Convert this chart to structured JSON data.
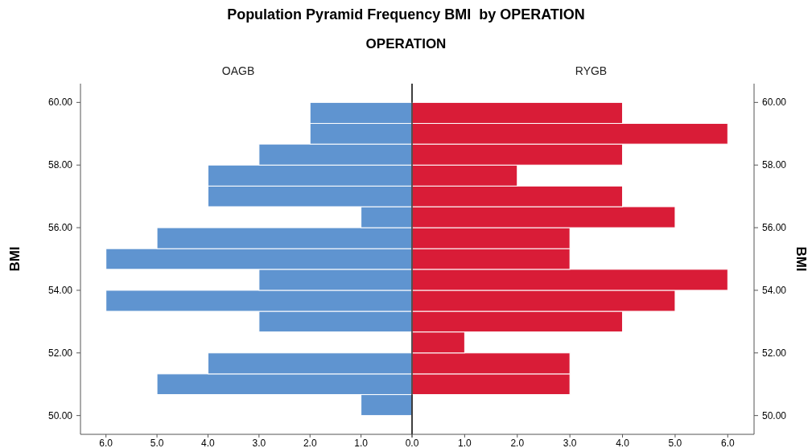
{
  "chart_data": [
    {
      "type": "histogram",
      "orientation": "horizontal",
      "title": "Population Pyramid Frequency BMI  by OPERATION",
      "subtitle": "OPERATION",
      "ylabel": "BMI",
      "bins": [
        50,
        50.67,
        51.33,
        52,
        52.67,
        53.33,
        54,
        54.67,
        55.33,
        56,
        56.67,
        57.33,
        58,
        58.67,
        59.33,
        60
      ],
      "series": [
        {
          "name": "OAGB",
          "color": "#5f94d0",
          "values": [
            1,
            5,
            4,
            0,
            3,
            6,
            3,
            6,
            5,
            1,
            4,
            4,
            3,
            2,
            2
          ]
        }
      ],
      "xlim": [
        6.5,
        0
      ],
      "xticks": [
        {
          "value": 6,
          "label": "6.0"
        },
        {
          "value": 5,
          "label": "5.0"
        },
        {
          "value": 4,
          "label": "4.0"
        },
        {
          "value": 3,
          "label": "3.0"
        },
        {
          "value": 2,
          "label": "2.0"
        },
        {
          "value": 1,
          "label": "1.0"
        },
        {
          "value": 0,
          "label": "0.0"
        }
      ],
      "ylim": [
        49.4,
        60.6
      ],
      "yticks": [
        {
          "value": 50,
          "label": "50.00"
        },
        {
          "value": 52,
          "label": "52.00"
        },
        {
          "value": 54,
          "label": "54.00"
        },
        {
          "value": 56,
          "label": "56.00"
        },
        {
          "value": 58,
          "label": "58.00"
        },
        {
          "value": 60,
          "label": "60.00"
        }
      ]
    },
    {
      "type": "histogram",
      "orientation": "horizontal",
      "ylabel": "BMI",
      "bins": [
        50,
        50.67,
        51.33,
        52,
        52.67,
        53.33,
        54,
        54.67,
        55.33,
        56,
        56.67,
        57.33,
        58,
        58.67,
        59.33,
        60
      ],
      "series": [
        {
          "name": "RYGB",
          "color": "#d91c37",
          "values": [
            0,
            3,
            3,
            1,
            4,
            5,
            6,
            3,
            3,
            5,
            4,
            2,
            4,
            6,
            4
          ]
        }
      ],
      "xlim": [
        0,
        6.5
      ],
      "xticks": [
        {
          "value": 0,
          "label": null
        },
        {
          "value": 1,
          "label": "1.0"
        },
        {
          "value": 2,
          "label": "2.0"
        },
        {
          "value": 3,
          "label": "3.0"
        },
        {
          "value": 4,
          "label": "4.0"
        },
        {
          "value": 5,
          "label": "5.0"
        },
        {
          "value": 6,
          "label": "6.0"
        }
      ],
      "ylim": [
        49.4,
        60.6
      ],
      "yticks": [
        {
          "value": 50,
          "label": "50.00"
        },
        {
          "value": 52,
          "label": "52.00"
        },
        {
          "value": 54,
          "label": "54.00"
        },
        {
          "value": 56,
          "label": "56.00"
        },
        {
          "value": 58,
          "label": "58.00"
        },
        {
          "value": 60,
          "label": "60.00"
        }
      ]
    }
  ]
}
